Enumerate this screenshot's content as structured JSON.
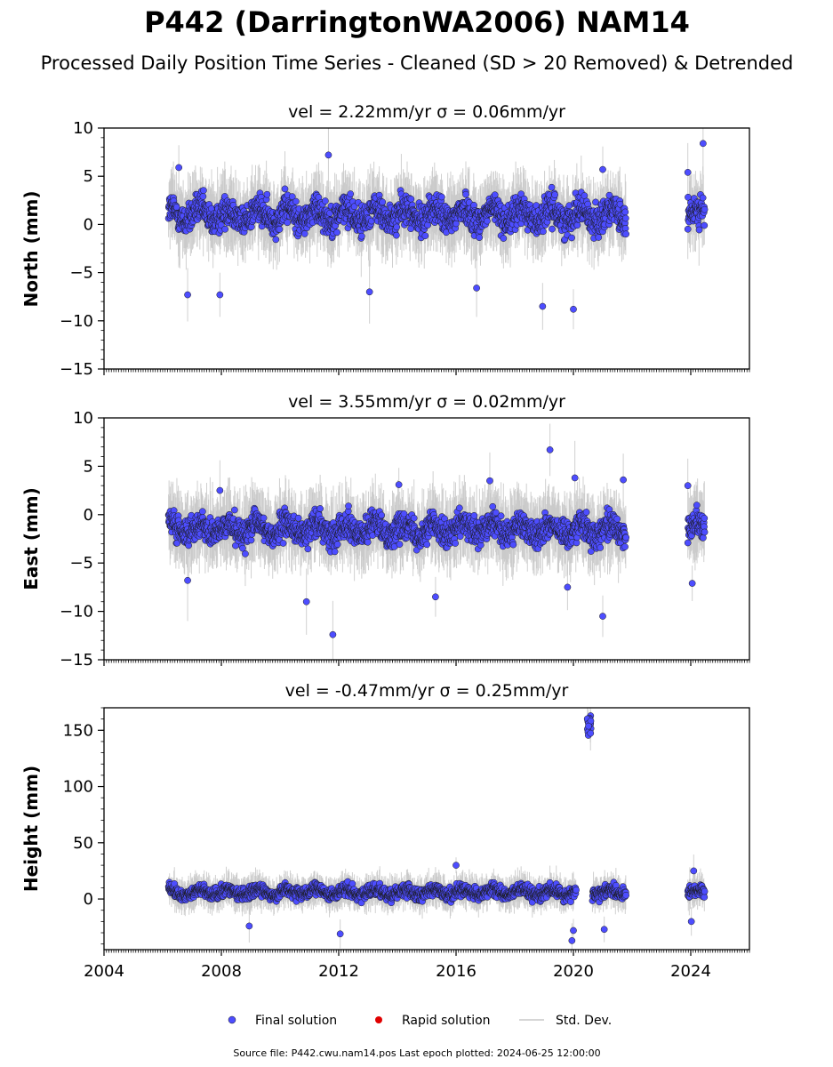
{
  "title": "P442 (DarringtonWA2006) NAM14",
  "subtitle": "Processed Daily Position Time Series - Cleaned (SD > 20 Removed) & Detrended",
  "legend": {
    "final": "Final solution",
    "rapid": "Rapid solution",
    "std": "Std. Dev."
  },
  "source_note": "Source file: P442.cwu.nam14.pos  Last epoch plotted: 2024-06-25 12:00:00",
  "colors": {
    "final": "#4d4dff",
    "rapid": "#e00000",
    "std": "#c8c8c8",
    "point_edge": "#1a1a1a"
  },
  "chart_data": [
    {
      "type": "scatter",
      "id": "north",
      "title": "vel = 2.22mm/yr   σ = 0.06mm/yr",
      "ylabel": "North (mm)",
      "xlim": [
        2004.0,
        2026.0
      ],
      "ylim": [
        -15,
        10
      ],
      "yticks": [
        10,
        5,
        0,
        -5,
        -10,
        -15
      ],
      "xticks": [
        2004,
        2008,
        2012,
        2016,
        2020,
        2024
      ],
      "series": [
        {
          "name": "Final solution",
          "segments": [
            [
              2006.2,
              2021.8
            ],
            [
              2023.9,
              2024.48
            ]
          ],
          "mean": 1.0,
          "spread": 2.0,
          "sd_span": 3.0,
          "outliers": [
            {
              "x": 2006.55,
              "y": 5.9
            },
            {
              "x": 2006.85,
              "y": -7.3
            },
            {
              "x": 2007.95,
              "y": -7.3
            },
            {
              "x": 2011.65,
              "y": 7.2
            },
            {
              "x": 2013.05,
              "y": -7.0
            },
            {
              "x": 2016.7,
              "y": -6.6
            },
            {
              "x": 2018.95,
              "y": -8.5
            },
            {
              "x": 2020.0,
              "y": -8.8
            },
            {
              "x": 2021.0,
              "y": 5.7
            },
            {
              "x": 2023.9,
              "y": 5.4
            },
            {
              "x": 2024.42,
              "y": 8.4
            }
          ]
        }
      ]
    },
    {
      "type": "scatter",
      "id": "east",
      "title": "vel = 3.55mm/yr   σ = 0.02mm/yr",
      "ylabel": "East (mm)",
      "xlim": [
        2004.0,
        2026.0
      ],
      "ylim": [
        -15,
        10
      ],
      "yticks": [
        10,
        5,
        0,
        -5,
        -10,
        -15
      ],
      "xticks": [
        2004,
        2008,
        2012,
        2016,
        2020,
        2024
      ],
      "series": [
        {
          "name": "Final solution",
          "segments": [
            [
              2006.2,
              2021.8
            ],
            [
              2023.9,
              2024.48
            ]
          ],
          "mean": -1.5,
          "spread": 1.8,
          "sd_span": 3.0,
          "outliers": [
            {
              "x": 2006.85,
              "y": -6.8
            },
            {
              "x": 2007.95,
              "y": 2.5
            },
            {
              "x": 2010.9,
              "y": -9.0
            },
            {
              "x": 2011.8,
              "y": -12.4
            },
            {
              "x": 2014.05,
              "y": 3.1
            },
            {
              "x": 2015.3,
              "y": -8.5
            },
            {
              "x": 2017.15,
              "y": 3.5
            },
            {
              "x": 2019.2,
              "y": 6.7
            },
            {
              "x": 2019.8,
              "y": -7.5
            },
            {
              "x": 2020.05,
              "y": 3.8
            },
            {
              "x": 2021.0,
              "y": -10.5
            },
            {
              "x": 2021.7,
              "y": 3.6
            },
            {
              "x": 2023.9,
              "y": 3.0
            },
            {
              "x": 2024.05,
              "y": -7.1
            }
          ]
        }
      ]
    },
    {
      "type": "scatter",
      "id": "height",
      "title": "vel = -0.47mm/yr   σ = 0.25mm/yr",
      "ylabel": "Height (mm)",
      "xlim": [
        2004.0,
        2026.0
      ],
      "ylim": [
        -45,
        170
      ],
      "yticks": [
        150,
        100,
        50,
        0
      ],
      "xticks": [
        2004,
        2008,
        2012,
        2016,
        2020,
        2024
      ],
      "series": [
        {
          "name": "Final solution",
          "segments": [
            [
              2006.2,
              2020.1
            ],
            [
              2020.65,
              2021.8
            ],
            [
              2023.9,
              2024.48
            ]
          ],
          "mean": 6.0,
          "spread": 7.0,
          "sd_span": 12.0,
          "outliers": [
            {
              "x": 2012.05,
              "y": -31
            },
            {
              "x": 2008.95,
              "y": -24
            },
            {
              "x": 2019.95,
              "y": -37
            },
            {
              "x": 2020.0,
              "y": -28
            },
            {
              "x": 2021.05,
              "y": -27
            },
            {
              "x": 2016.0,
              "y": 30
            },
            {
              "x": 2024.02,
              "y": -20
            },
            {
              "x": 2024.1,
              "y": 25
            }
          ],
          "cluster": {
            "x": [
              2020.45,
              2020.6
            ],
            "y": [
              143,
              167
            ]
          }
        }
      ]
    }
  ]
}
